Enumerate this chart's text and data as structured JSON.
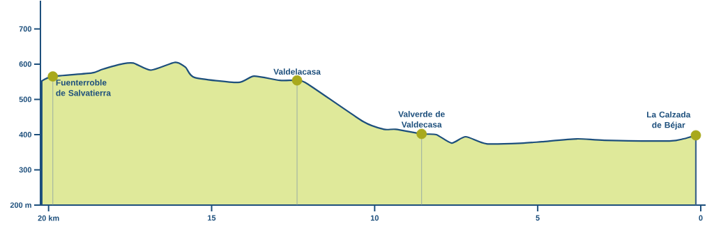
{
  "chart_data": {
    "type": "area",
    "xlim": [
      20.25,
      -0.15
    ],
    "ylim": [
      200,
      780
    ],
    "xticks": [
      {
        "value": 20,
        "label": "20 km"
      },
      15,
      10,
      5,
      0
    ],
    "yticks": [
      {
        "value": 200,
        "label": "200 m"
      },
      300,
      400,
      500,
      600,
      700
    ],
    "grid": false,
    "series": [
      {
        "color": "#dfe99a",
        "x": [
          20.21,
          19.87,
          18.68,
          18.36,
          17.72,
          17.4,
          16.86,
          16.12,
          15.8,
          15.52,
          14.19,
          13.7,
          12.91,
          12.38,
          12.06,
          10.35,
          9.71,
          9.35,
          8.56,
          8.11,
          7.64,
          7.21,
          6.57,
          5.44,
          4.87,
          3.8,
          2.95,
          0.96,
          0.53,
          0.15
        ],
        "values": [
          552,
          565,
          575,
          585,
          601,
          603,
          583,
          605,
          591,
          562,
          548,
          566,
          554,
          554,
          544,
          437,
          415,
          415,
          402,
          400,
          376,
          394,
          374,
          376,
          380,
          388,
          384,
          382,
          388,
          398
        ]
      },
      {
        "type": "lollipop",
        "color": "#a8a91c",
        "x": [
          19.87,
          12.38,
          8.56,
          0.15
        ],
        "values": [
          565,
          554,
          402,
          398
        ]
      }
    ],
    "annotations": [
      {
        "text": "Fuenterroble de Salvatierra",
        "x": 19.87,
        "y": 565
      },
      {
        "text": "Valdelacasa",
        "x": 12.38,
        "y": 554
      },
      {
        "text": "Valverde de Valdecasa",
        "x": 8.56,
        "y": 402
      },
      {
        "text": "La Calzada de Béjar",
        "x": 0.15,
        "y": 398
      }
    ]
  }
}
